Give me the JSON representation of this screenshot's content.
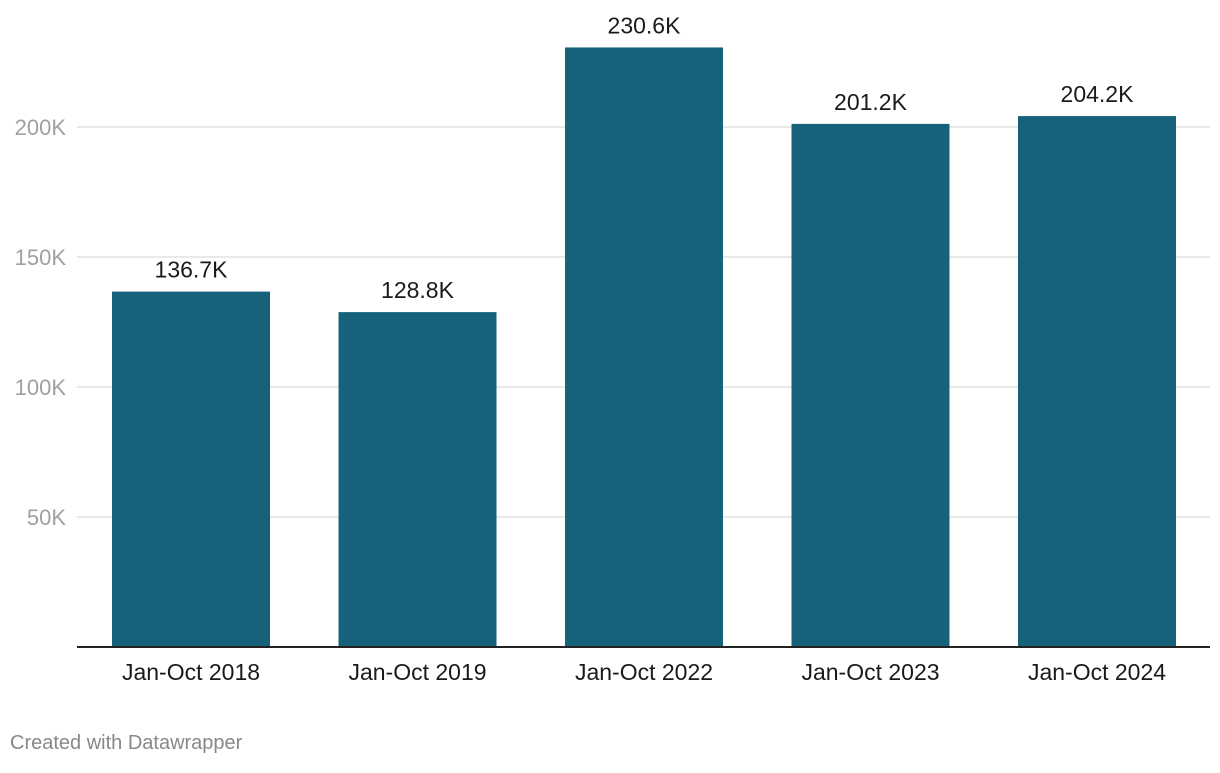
{
  "chart_data": {
    "type": "bar",
    "categories": [
      "Jan-Oct 2018",
      "Jan-Oct 2019",
      "Jan-Oct 2022",
      "Jan-Oct 2023",
      "Jan-Oct 2024"
    ],
    "values": [
      136700,
      128800,
      230600,
      201200,
      204200
    ],
    "data_labels": [
      "136.7K",
      "128.8K",
      "230.6K",
      "201.2K",
      "204.2K"
    ],
    "ylim": [
      0,
      240000
    ],
    "yticks": [
      {
        "value": 50000,
        "label": "50K"
      },
      {
        "value": 100000,
        "label": "100K"
      },
      {
        "value": 150000,
        "label": "150K"
      },
      {
        "value": 200000,
        "label": "200K"
      }
    ],
    "grid": true,
    "bar_color": "#17627b"
  },
  "footer": {
    "credit": "Created with Datawrapper"
  }
}
